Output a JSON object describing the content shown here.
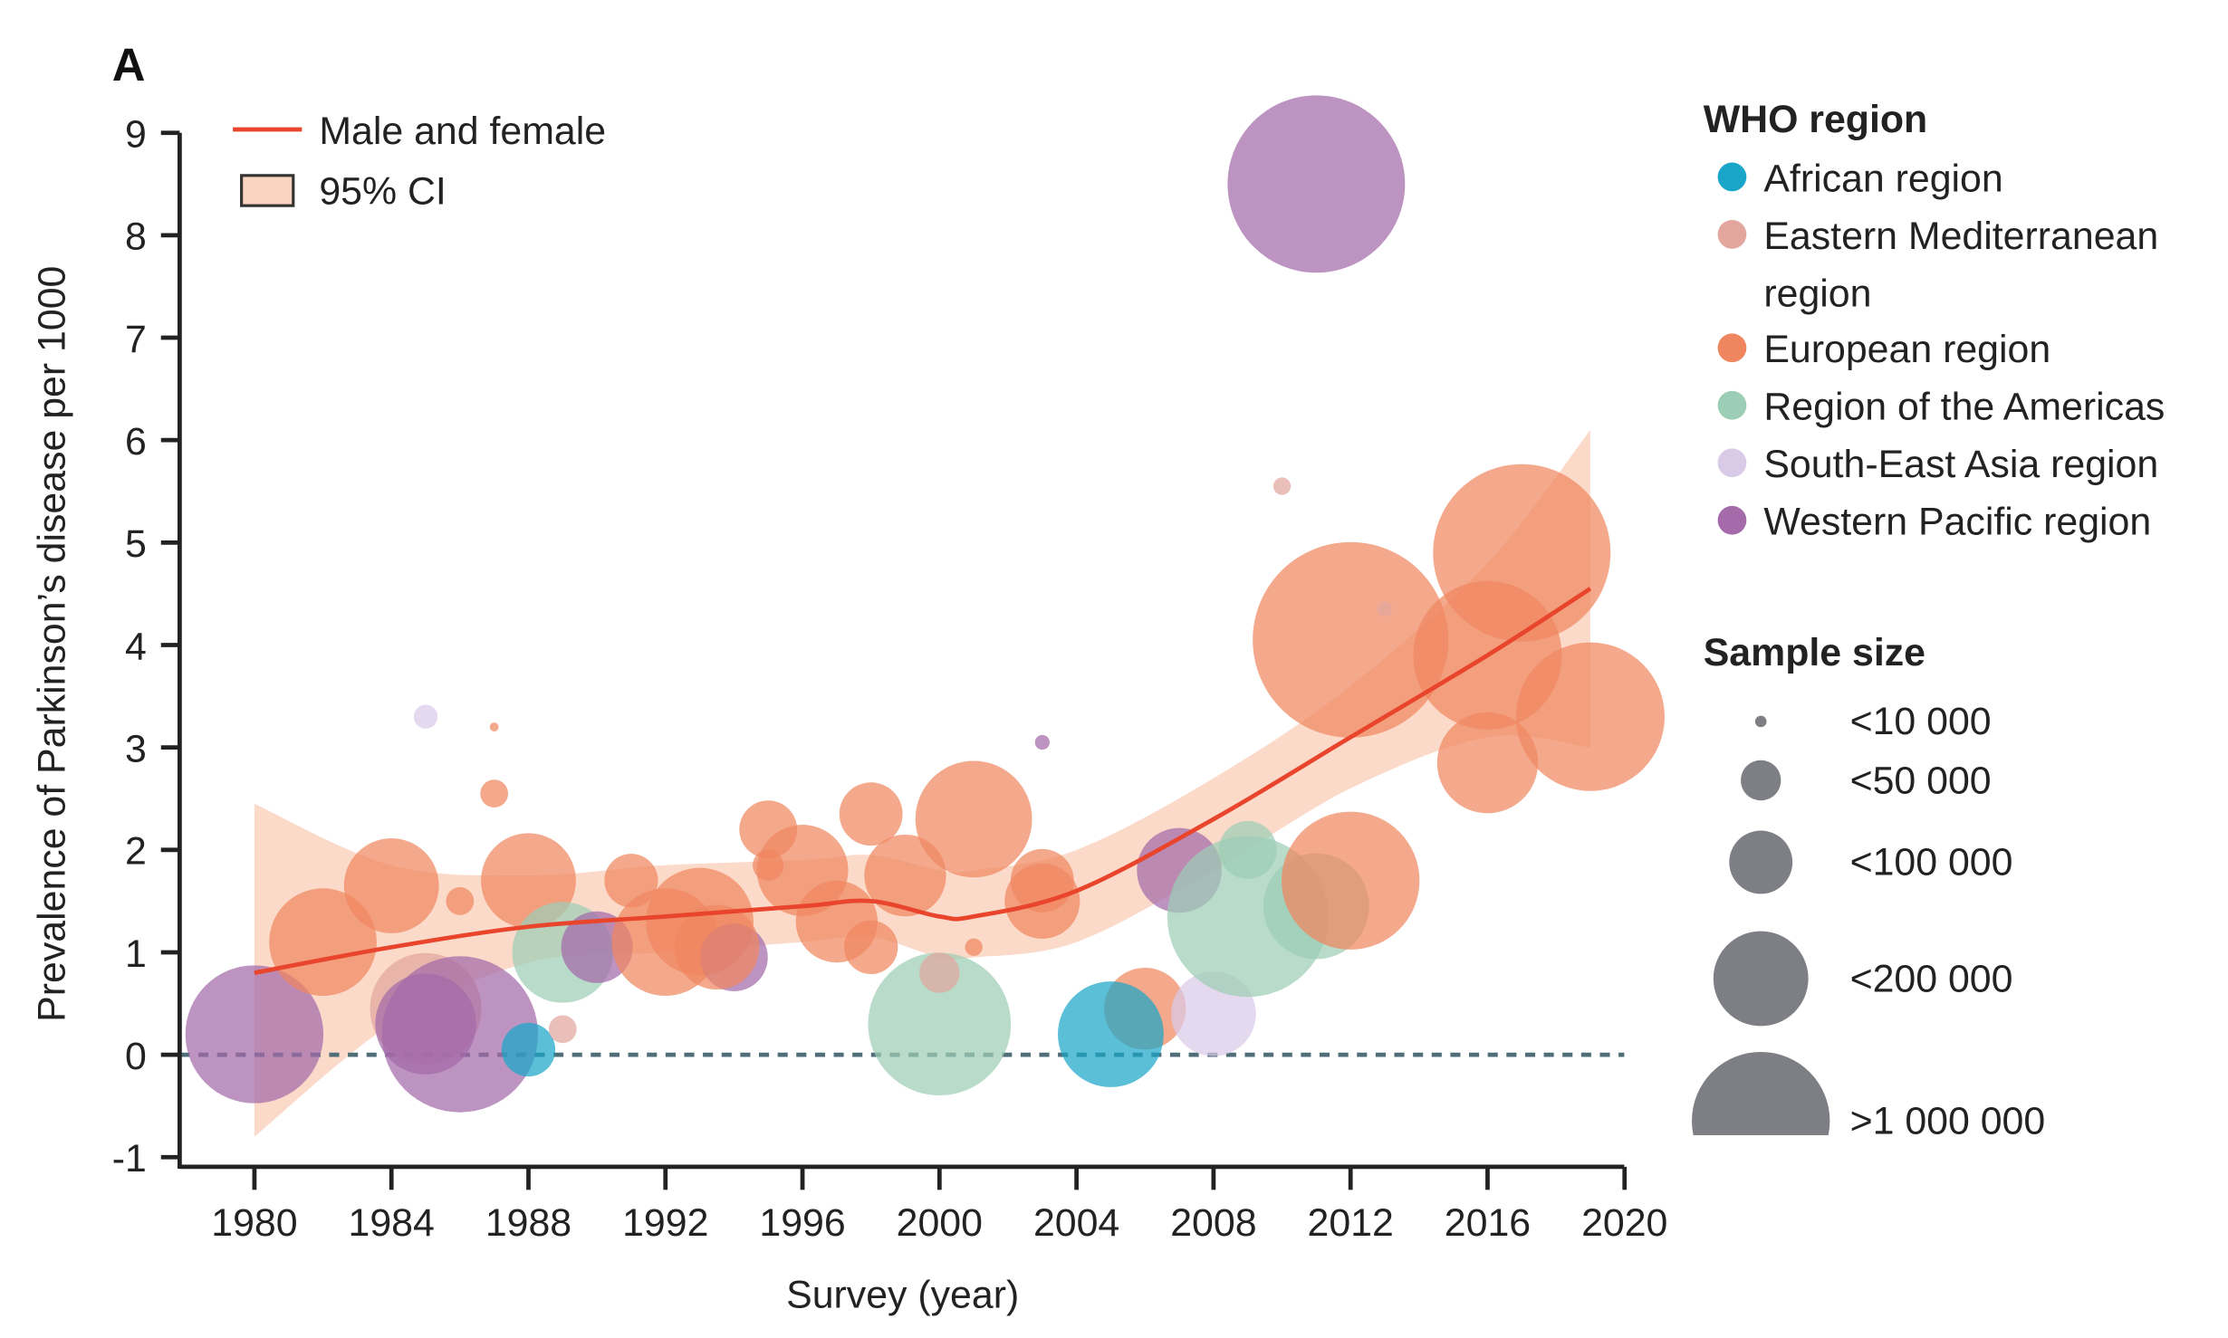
{
  "chart_data": {
    "type": "scatter",
    "panel_label": "A",
    "xlabel": "Survey (year)",
    "ylabel": "Prevalence of Parkinson’s disease per 1000",
    "xlim": [
      1978,
      2020
    ],
    "ylim": [
      -1,
      9
    ],
    "xticks": [
      1980,
      1984,
      1988,
      1992,
      1996,
      2000,
      2004,
      2008,
      2012,
      2016,
      2020
    ],
    "yticks": [
      -1,
      0,
      1,
      2,
      3,
      4,
      5,
      6,
      7,
      8,
      9
    ],
    "reference_line": {
      "y": 0,
      "style": "dashed"
    },
    "colors": {
      "African region": "#1aa6c8",
      "Eastern Mediterranean region": "#e2a69e",
      "European region": "#f0865f",
      "Region of the Americas": "#9ccdb5",
      "South-East Asia region": "#d9cbe8",
      "Western Pacific region": "#a46aa9",
      "line": "#e8452c",
      "ci": "#fbd3c1",
      "sample_legend": "#7d7f84"
    },
    "legend": {
      "line_label": "Male and female",
      "ci_label": "95% CI",
      "region_title": "WHO region",
      "regions": [
        "African region",
        "Eastern Mediterranean",
        "region",
        "European region",
        "Region of the Americas",
        "South-East Asia region",
        "Western Pacific region"
      ],
      "size_title": "Sample size",
      "sizes": [
        {
          "label": "<10 000",
          "n": 10000
        },
        {
          "label": "<50 000",
          "n": 50000
        },
        {
          "label": "<100 000",
          "n": 100000
        },
        {
          "label": "<200 000",
          "n": 200000
        },
        {
          "label": ">1 000 000",
          "n": 1000000
        }
      ]
    },
    "trend": {
      "x": [
        1980,
        1984,
        1988,
        1992,
        1996,
        1998,
        2000,
        2001,
        2004,
        2008,
        2012,
        2016,
        2019
      ],
      "y": [
        0.8,
        1.05,
        1.25,
        1.35,
        1.45,
        1.5,
        1.35,
        1.35,
        1.6,
        2.3,
        3.1,
        3.9,
        4.55
      ],
      "ci_upper": [
        2.45,
        1.85,
        1.75,
        1.85,
        1.9,
        1.95,
        1.8,
        1.8,
        2.0,
        2.7,
        3.6,
        4.8,
        6.1
      ],
      "ci_lower": [
        -0.8,
        0.3,
        0.9,
        1.0,
        1.1,
        1.15,
        0.95,
        0.95,
        1.1,
        1.8,
        2.6,
        3.1,
        3.0
      ]
    },
    "points": [
      {
        "x": 1980,
        "y": 0.2,
        "n": 1000000,
        "region": "Western Pacific region"
      },
      {
        "x": 1982,
        "y": 1.1,
        "n": 320000,
        "region": "European region"
      },
      {
        "x": 1984,
        "y": 1.65,
        "n": 200000,
        "region": "European region"
      },
      {
        "x": 1985,
        "y": 0.45,
        "n": 370000,
        "region": "Eastern Mediterranean region"
      },
      {
        "x": 1985,
        "y": 0.3,
        "n": 250000,
        "region": "Western Pacific region"
      },
      {
        "x": 1986,
        "y": 0.2,
        "n": 2000000,
        "region": "Western Pacific region"
      },
      {
        "x": 1985,
        "y": 3.3,
        "n": 20000,
        "region": "South-East Asia region"
      },
      {
        "x": 1987,
        "y": 3.2,
        "n": 5000,
        "region": "European region"
      },
      {
        "x": 1987,
        "y": 2.55,
        "n": 25000,
        "region": "European region"
      },
      {
        "x": 1986,
        "y": 1.5,
        "n": 25000,
        "region": "European region"
      },
      {
        "x": 1988,
        "y": 1.7,
        "n": 200000,
        "region": "European region"
      },
      {
        "x": 1988,
        "y": 0.05,
        "n": 75000,
        "region": "African region"
      },
      {
        "x": 1989,
        "y": 0.25,
        "n": 25000,
        "region": "Eastern Mediterranean region"
      },
      {
        "x": 1989,
        "y": 1.0,
        "n": 250000,
        "region": "Region of the Americas"
      },
      {
        "x": 1990,
        "y": 1.05,
        "n": 120000,
        "region": "Western Pacific region"
      },
      {
        "x": 1991,
        "y": 1.7,
        "n": 75000,
        "region": "European region"
      },
      {
        "x": 1992,
        "y": 1.1,
        "n": 320000,
        "region": "European region"
      },
      {
        "x": 1993,
        "y": 1.3,
        "n": 320000,
        "region": "European region"
      },
      {
        "x": 1994,
        "y": 0.95,
        "n": 110000,
        "region": "Western Pacific region"
      },
      {
        "x": 1993.5,
        "y": 1.05,
        "n": 160000,
        "region": "European region"
      },
      {
        "x": 1995,
        "y": 2.2,
        "n": 85000,
        "region": "European region"
      },
      {
        "x": 1995,
        "y": 1.85,
        "n": 30000,
        "region": "European region"
      },
      {
        "x": 1996,
        "y": 1.8,
        "n": 185000,
        "region": "European region"
      },
      {
        "x": 1997,
        "y": 1.3,
        "n": 150000,
        "region": "European region"
      },
      {
        "x": 1998,
        "y": 2.35,
        "n": 100000,
        "region": "European region"
      },
      {
        "x": 1998,
        "y": 1.05,
        "n": 75000,
        "region": "European region"
      },
      {
        "x": 1999,
        "y": 1.75,
        "n": 150000,
        "region": "European region"
      },
      {
        "x": 2000,
        "y": 0.3,
        "n": 1200000,
        "region": "Region of the Americas"
      },
      {
        "x": 2000,
        "y": 0.8,
        "n": 50000,
        "region": "Eastern Mediterranean region"
      },
      {
        "x": 2001,
        "y": 2.3,
        "n": 450000,
        "region": "European region"
      },
      {
        "x": 2001,
        "y": 1.05,
        "n": 14000,
        "region": "European region"
      },
      {
        "x": 2003,
        "y": 3.05,
        "n": 12000,
        "region": "Western Pacific region"
      },
      {
        "x": 2003,
        "y": 1.7,
        "n": 100000,
        "region": "European region"
      },
      {
        "x": 2003,
        "y": 1.5,
        "n": 130000,
        "region": "European region"
      },
      {
        "x": 2006,
        "y": 0.45,
        "n": 150000,
        "region": "European region"
      },
      {
        "x": 2005,
        "y": 0.2,
        "n": 300000,
        "region": "African region"
      },
      {
        "x": 2008,
        "y": 0.4,
        "n": 160000,
        "region": "South-East Asia region"
      },
      {
        "x": 2007,
        "y": 1.8,
        "n": 160000,
        "region": "Western Pacific region"
      },
      {
        "x": 2009,
        "y": 1.35,
        "n": 2400000,
        "region": "Region of the Americas"
      },
      {
        "x": 2009,
        "y": 2.0,
        "n": 85000,
        "region": "Region of the Americas"
      },
      {
        "x": 2011,
        "y": 1.45,
        "n": 300000,
        "region": "Region of the Americas"
      },
      {
        "x": 2012,
        "y": 1.7,
        "n": 1000000,
        "region": "European region"
      },
      {
        "x": 2012,
        "y": 4.05,
        "n": 9000000,
        "region": "European region"
      },
      {
        "x": 2010,
        "y": 5.55,
        "n": 14000,
        "region": "Eastern Mediterranean region"
      },
      {
        "x": 2013,
        "y": 4.35,
        "n": 12000,
        "region": "Eastern Mediterranean region"
      },
      {
        "x": 2011,
        "y": 8.5,
        "n": 4500000,
        "region": "Western Pacific region"
      },
      {
        "x": 2017,
        "y": 4.9,
        "n": 4500000,
        "region": "European region"
      },
      {
        "x": 2016,
        "y": 3.9,
        "n": 1500000,
        "region": "European region"
      },
      {
        "x": 2016,
        "y": 2.85,
        "n": 250000,
        "region": "European region"
      },
      {
        "x": 2019,
        "y": 3.3,
        "n": 1500000,
        "region": "European region"
      }
    ]
  }
}
